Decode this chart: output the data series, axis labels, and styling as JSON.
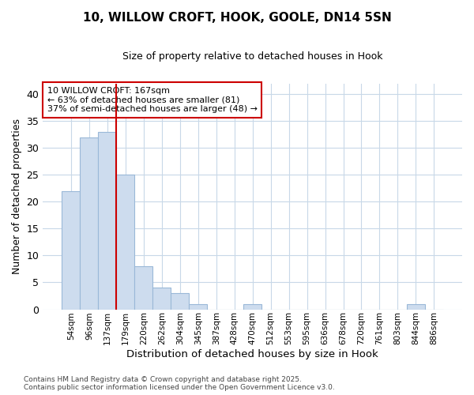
{
  "title": "10, WILLOW CROFT, HOOK, GOOLE, DN14 5SN",
  "subtitle": "Size of property relative to detached houses in Hook",
  "xlabel": "Distribution of detached houses by size in Hook",
  "ylabel": "Number of detached properties",
  "categories": [
    "54sqm",
    "96sqm",
    "137sqm",
    "179sqm",
    "220sqm",
    "262sqm",
    "304sqm",
    "345sqm",
    "387sqm",
    "428sqm",
    "470sqm",
    "512sqm",
    "553sqm",
    "595sqm",
    "636sqm",
    "678sqm",
    "720sqm",
    "761sqm",
    "803sqm",
    "844sqm",
    "886sqm"
  ],
  "values": [
    22,
    32,
    33,
    25,
    8,
    4,
    3,
    1,
    0,
    0,
    1,
    0,
    0,
    0,
    0,
    0,
    0,
    0,
    0,
    1,
    0
  ],
  "bar_color": "#cddcee",
  "bar_edge_color": "#9ab8d8",
  "background_color": "#ffffff",
  "grid_color": "#c8d8e8",
  "vline_x": 2.5,
  "vline_color": "#cc0000",
  "annotation_text": "10 WILLOW CROFT: 167sqm\n← 63% of detached houses are smaller (81)\n37% of semi-detached houses are larger (48) →",
  "annotation_box_color": "#ffffff",
  "annotation_box_edge": "#cc0000",
  "ylim": [
    0,
    42
  ],
  "yticks": [
    0,
    5,
    10,
    15,
    20,
    25,
    30,
    35,
    40
  ],
  "footer_line1": "Contains HM Land Registry data © Crown copyright and database right 2025.",
  "footer_line2": "Contains public sector information licensed under the Open Government Licence v3.0."
}
